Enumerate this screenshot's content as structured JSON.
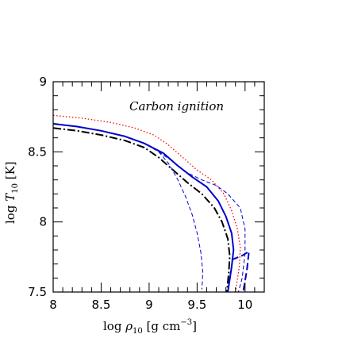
{
  "chart_data": {
    "type": "line",
    "title": "",
    "annotation": "Carbon ignition",
    "xlabel": {
      "main": "log ",
      "rho": "ρ",
      "sub": "10",
      "units": "  [g cm",
      "sup": "−3",
      "close": "]"
    },
    "ylabel": {
      "main": "log ",
      "T": "T",
      "sub": "10",
      "units": " [K]"
    },
    "xlim": [
      8,
      10.2
    ],
    "ylim": [
      7.5,
      9
    ],
    "xticks": [
      8,
      8.5,
      9,
      9.5,
      10
    ],
    "xtick_labels": [
      "8",
      "8.5",
      "9",
      "9.5",
      "10"
    ],
    "yticks": [
      7.5,
      8,
      8.5,
      9
    ],
    "ytick_labels": [
      "7.5",
      "8",
      "8.5",
      "9"
    ],
    "grid": false,
    "series": [
      {
        "style": "dash-dot",
        "color": "#000000",
        "points": [
          [
            8.0,
            8.67
          ],
          [
            8.25,
            8.65
          ],
          [
            8.5,
            8.62
          ],
          [
            8.75,
            8.58
          ],
          [
            8.95,
            8.53
          ],
          [
            9.1,
            8.46
          ],
          [
            9.25,
            8.37
          ],
          [
            9.4,
            8.28
          ],
          [
            9.55,
            8.2
          ],
          [
            9.68,
            8.1
          ],
          [
            9.76,
            8.0
          ],
          [
            9.82,
            7.88
          ],
          [
            9.84,
            7.76
          ],
          [
            9.83,
            7.64
          ],
          [
            9.81,
            7.5
          ]
        ]
      },
      {
        "style": "solid",
        "color": "#0000cc",
        "points": [
          [
            8.0,
            8.7
          ],
          [
            8.25,
            8.68
          ],
          [
            8.5,
            8.65
          ],
          [
            8.75,
            8.61
          ],
          [
            8.95,
            8.56
          ],
          [
            9.15,
            8.49
          ],
          [
            9.3,
            8.4
          ],
          [
            9.45,
            8.32
          ],
          [
            9.6,
            8.25
          ],
          [
            9.72,
            8.15
          ],
          [
            9.8,
            8.04
          ],
          [
            9.86,
            7.92
          ],
          [
            9.88,
            7.8
          ],
          [
            9.86,
            7.68
          ],
          [
            9.82,
            7.5
          ]
        ]
      },
      {
        "style": "dotted",
        "color": "#ff0000",
        "points": [
          [
            8.0,
            8.76
          ],
          [
            8.3,
            8.74
          ],
          [
            8.6,
            8.71
          ],
          [
            8.85,
            8.67
          ],
          [
            9.05,
            8.62
          ],
          [
            9.2,
            8.55
          ],
          [
            9.35,
            8.46
          ],
          [
            9.5,
            8.37
          ],
          [
            9.65,
            8.3
          ],
          [
            9.78,
            8.2
          ],
          [
            9.86,
            8.08
          ],
          [
            9.92,
            7.95
          ],
          [
            9.95,
            7.82
          ],
          [
            9.94,
            7.68
          ],
          [
            9.9,
            7.5
          ]
        ]
      },
      {
        "style": "dashed",
        "color": "#0000cc",
        "points": [
          [
            8.8,
            8.6
          ],
          [
            8.95,
            8.56
          ],
          [
            9.1,
            8.5
          ],
          [
            9.25,
            8.43
          ],
          [
            9.4,
            8.35
          ],
          [
            9.55,
            8.3
          ],
          [
            9.7,
            8.26
          ],
          [
            9.82,
            8.2
          ],
          [
            9.95,
            8.1
          ],
          [
            10.0,
            7.95
          ],
          [
            10.0,
            7.78
          ],
          [
            9.97,
            7.6
          ],
          [
            9.93,
            7.5
          ]
        ]
      },
      {
        "style": "dashed",
        "color": "#0000cc",
        "points": [
          [
            9.1,
            8.5
          ],
          [
            9.2,
            8.42
          ],
          [
            9.3,
            8.3
          ],
          [
            9.38,
            8.18
          ],
          [
            9.45,
            8.05
          ],
          [
            9.5,
            7.92
          ],
          [
            9.54,
            7.78
          ],
          [
            9.56,
            7.64
          ],
          [
            9.55,
            7.52
          ]
        ]
      },
      {
        "style": "dashed-long",
        "color": "#0000cc",
        "points": [
          [
            9.86,
            7.73
          ],
          [
            9.97,
            7.76
          ],
          [
            10.04,
            7.79
          ],
          [
            10.02,
            7.66
          ],
          [
            9.98,
            7.5
          ]
        ]
      }
    ]
  }
}
